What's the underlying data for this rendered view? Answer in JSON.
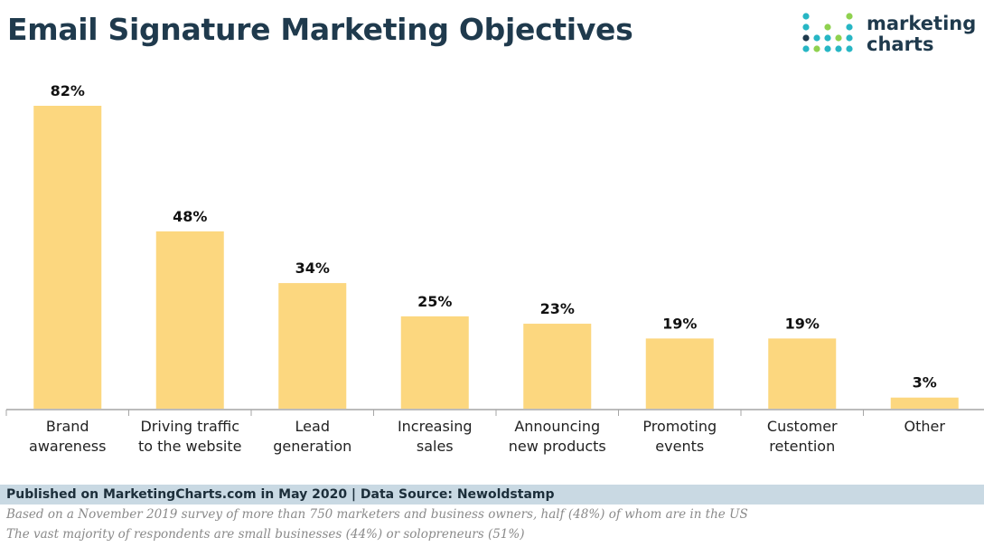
{
  "header": {
    "title": "Email Signature Marketing Objectives"
  },
  "logo": {
    "line1": "marketing",
    "line2": "charts",
    "icon": "dot-grid-icon"
  },
  "colors": {
    "bar": "#fcd77f",
    "title": "#1f3a4d",
    "footer_bg": "#c9d9e3"
  },
  "chart_data": {
    "type": "bar",
    "title": "Email Signature Marketing Objectives",
    "xlabel": "",
    "ylabel": "",
    "ylim": [
      0,
      82
    ],
    "grid": false,
    "unit": "%",
    "categories": [
      [
        "Brand",
        "awareness"
      ],
      [
        "Driving traffic",
        "to the website"
      ],
      [
        "Lead",
        "generation"
      ],
      [
        "Increasing",
        "sales"
      ],
      [
        "Announcing",
        "new products"
      ],
      [
        "Promoting",
        "events"
      ],
      [
        "Customer",
        "retention"
      ],
      [
        "Other"
      ]
    ],
    "values": [
      82,
      48,
      34,
      25,
      23,
      19,
      19,
      3
    ],
    "value_labels": [
      "82%",
      "48%",
      "34%",
      "25%",
      "23%",
      "19%",
      "19%",
      "3%"
    ]
  },
  "footer": {
    "source": "Published on MarketingCharts.com in May 2020 | Data Source: Newoldstamp",
    "note1": "Based on a November 2019 survey of more than 750 marketers and business owners, half (48%) of whom are in the US",
    "note2": "The vast majority of respondents are small businesses (44%) or solopreneurs (51%)"
  }
}
